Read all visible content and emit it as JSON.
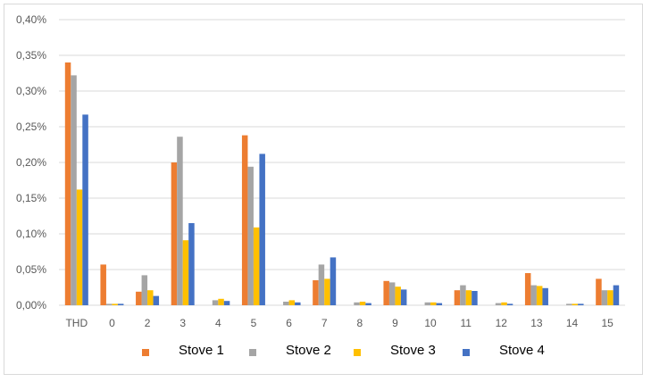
{
  "chart_data": {
    "type": "bar",
    "categories": [
      "THD",
      "0",
      "2",
      "3",
      "4",
      "5",
      "6",
      "7",
      "8",
      "9",
      "10",
      "11",
      "12",
      "13",
      "14",
      "15"
    ],
    "series": [
      {
        "name": "Stove 1",
        "color": "#ED7D31",
        "values": [
          0.34,
          0.057,
          0.019,
          0.2,
          0.0,
          0.238,
          0.0,
          0.035,
          0.0,
          0.034,
          0.0,
          0.021,
          0.0,
          0.045,
          0.0,
          0.037
        ]
      },
      {
        "name": "Stove 2",
        "color": "#A5A5A5",
        "values": [
          0.322,
          0.002,
          0.042,
          0.236,
          0.007,
          0.194,
          0.005,
          0.057,
          0.004,
          0.032,
          0.004,
          0.028,
          0.003,
          0.028,
          0.002,
          0.021
        ]
      },
      {
        "name": "Stove 3",
        "color": "#FFC000",
        "values": [
          0.162,
          0.002,
          0.021,
          0.091,
          0.009,
          0.109,
          0.007,
          0.037,
          0.005,
          0.026,
          0.004,
          0.021,
          0.004,
          0.027,
          0.002,
          0.021
        ]
      },
      {
        "name": "Stove 4",
        "color": "#4472C4",
        "values": [
          0.267,
          0.002,
          0.013,
          0.115,
          0.006,
          0.212,
          0.004,
          0.067,
          0.003,
          0.022,
          0.003,
          0.02,
          0.002,
          0.024,
          0.002,
          0.028
        ]
      }
    ],
    "yticks": [
      "0,00%",
      "0,05%",
      "0,10%",
      "0,15%",
      "0,20%",
      "0,25%",
      "0,30%",
      "0,35%",
      "0,40%"
    ],
    "ylim": [
      0,
      0.4
    ],
    "grid": true,
    "legend_position": "bottom",
    "gridline_color": "#d9d9d9"
  }
}
